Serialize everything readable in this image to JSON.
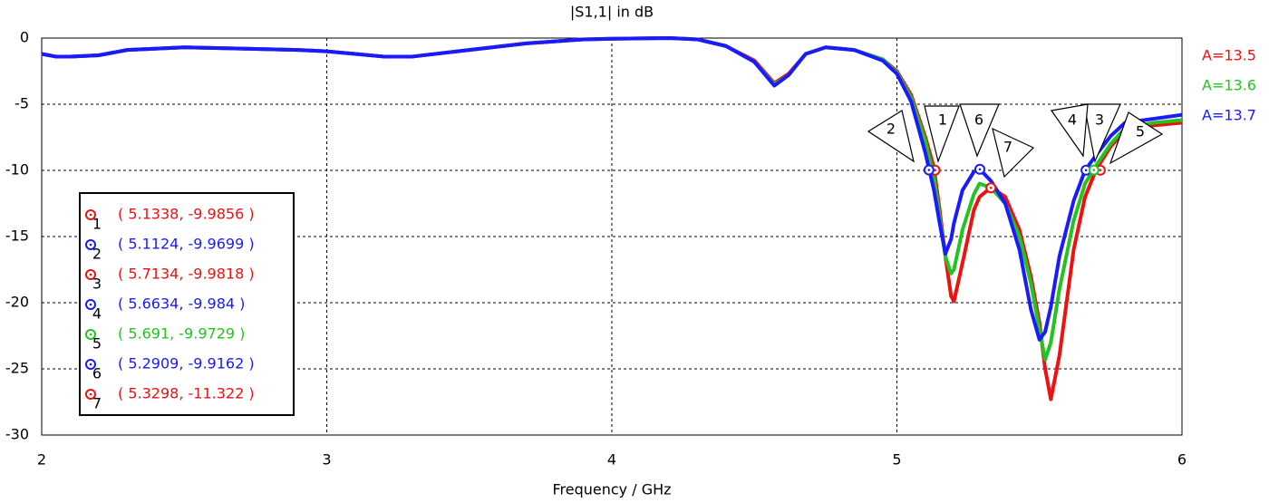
{
  "chart_data": {
    "type": "line",
    "title": "|S1,1| in dB",
    "x_label": "Frequency / GHz",
    "x": [
      2.0,
      2.05,
      2.1,
      2.2,
      2.3,
      2.5,
      2.7,
      2.9,
      3.0,
      3.1,
      3.2,
      3.3,
      3.5,
      3.7,
      3.9,
      4.0,
      4.2,
      4.3,
      4.4,
      4.5,
      4.57,
      4.62,
      4.68,
      4.75,
      4.85,
      4.95,
      5.0,
      5.05,
      5.1,
      5.13,
      5.15,
      5.17,
      5.19,
      5.2,
      5.23,
      5.27,
      5.29,
      5.33,
      5.38,
      5.43,
      5.47,
      5.5,
      5.52,
      5.54,
      5.57,
      5.62,
      5.66,
      5.7,
      5.75,
      5.8,
      5.9,
      6.0
    ],
    "series": [
      {
        "name": "A=13.5",
        "color": "#ee1111",
        "values": [
          -1.2,
          -1.4,
          -1.4,
          -1.3,
          -0.9,
          -0.7,
          -0.8,
          -0.9,
          -1.0,
          -1.2,
          -1.4,
          -1.4,
          -0.9,
          -0.4,
          -0.1,
          -0.05,
          0,
          -0.1,
          -0.6,
          -1.7,
          -3.4,
          -2.7,
          -1.2,
          -0.7,
          -0.9,
          -1.6,
          -2.5,
          -4.3,
          -7.5,
          -9.8,
          -13,
          -16.5,
          -19.5,
          -19.9,
          -17,
          -13,
          -12,
          -11.3,
          -12,
          -14.5,
          -18,
          -21.5,
          -25,
          -27.3,
          -24,
          -16,
          -12,
          -9.9,
          -8.2,
          -7,
          -6.6,
          -6.4
        ]
      },
      {
        "name": "A=13.6",
        "color": "#22c322",
        "values": [
          -1.2,
          -1.4,
          -1.4,
          -1.3,
          -0.9,
          -0.7,
          -0.8,
          -0.9,
          -1.0,
          -1.2,
          -1.4,
          -1.4,
          -0.9,
          -0.4,
          -0.1,
          -0.05,
          0,
          -0.1,
          -0.6,
          -1.8,
          -3.5,
          -2.8,
          -1.2,
          -0.7,
          -0.9,
          -1.6,
          -2.6,
          -4.5,
          -7.8,
          -10.5,
          -13.5,
          -16.5,
          -17.8,
          -17.5,
          -14.5,
          -11.8,
          -11,
          -11.3,
          -12.5,
          -15,
          -18.5,
          -22,
          -24.3,
          -23,
          -19,
          -13.8,
          -11,
          -9.6,
          -8,
          -6.8,
          -6.4,
          -6.2
        ]
      },
      {
        "name": "A=13.7",
        "color": "#1a1aff",
        "values": [
          -1.2,
          -1.4,
          -1.4,
          -1.3,
          -0.9,
          -0.7,
          -0.8,
          -0.9,
          -1.0,
          -1.2,
          -1.4,
          -1.4,
          -0.9,
          -0.4,
          -0.1,
          -0.05,
          0,
          -0.1,
          -0.6,
          -1.8,
          -3.6,
          -2.8,
          -1.2,
          -0.7,
          -0.9,
          -1.7,
          -2.7,
          -4.8,
          -8.7,
          -11.5,
          -14,
          -16.3,
          -15.2,
          -14,
          -11.5,
          -10.1,
          -9.9,
          -10.8,
          -12.5,
          -16,
          -20.5,
          -22.8,
          -22.2,
          -20.3,
          -16.5,
          -12.3,
          -10,
          -8.8,
          -7.4,
          -6.4,
          -6.1,
          -5.8
        ]
      }
    ],
    "markers": [
      {
        "name": "1",
        "x": 5.1338,
        "y": -9.9856,
        "label": "( 5.1338, -9.9856 )",
        "color": "#ee1111"
      },
      {
        "name": "2",
        "x": 5.1124,
        "y": -9.9699,
        "label": "( 5.1124, -9.9699 )",
        "color": "#1a1aff"
      },
      {
        "name": "3",
        "x": 5.7134,
        "y": -9.9818,
        "label": "( 5.7134, -9.9818 )",
        "color": "#ee1111"
      },
      {
        "name": "4",
        "x": 5.6634,
        "y": -9.984,
        "label": "( 5.6634, -9.984 )",
        "color": "#1a1aff"
      },
      {
        "name": "5",
        "x": 5.691,
        "y": -9.9729,
        "label": "( 5.691, -9.9729 )",
        "color": "#22c322"
      },
      {
        "name": "6",
        "x": 5.2909,
        "y": -9.9162,
        "label": "( 5.2909, -9.9162 )",
        "color": "#1a1aff"
      },
      {
        "name": "7",
        "x": 5.3298,
        "y": -11.322,
        "label": "( 5.3298, -11.322 )",
        "color": "#ee1111"
      }
    ],
    "xlim": [
      2,
      6
    ],
    "xticks": [
      2,
      3,
      4,
      5,
      6
    ],
    "ylim": [
      -30,
      0
    ],
    "yticks": [
      0,
      -5,
      -10,
      -15,
      -20,
      -25,
      -30
    ],
    "grid": true
  }
}
